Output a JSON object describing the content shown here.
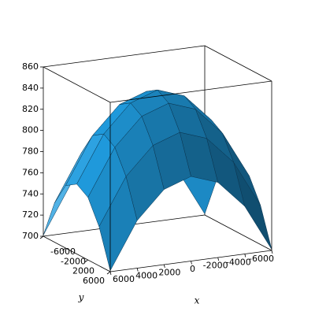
{
  "chart_data": {
    "type": "surface",
    "x": [
      -6000,
      -4000,
      -2000,
      0,
      2000,
      4000,
      6000
    ],
    "y": [
      -6000,
      -4000,
      -2000,
      0,
      2000,
      4000,
      6000
    ],
    "z": [
      [
        701,
        745,
        771,
        780,
        771,
        745,
        701
      ],
      [
        737,
        781,
        807,
        816,
        807,
        781,
        737
      ],
      [
        759,
        803,
        829,
        838,
        829,
        803,
        759
      ],
      [
        766,
        810,
        836,
        845,
        836,
        810,
        766
      ],
      [
        759,
        803,
        829,
        838,
        829,
        803,
        759
      ],
      [
        737,
        781,
        807,
        816,
        807,
        781,
        737
      ],
      [
        701,
        745,
        771,
        780,
        771,
        745,
        701
      ]
    ],
    "color": "#1e90d0",
    "xlabel": "x",
    "ylabel": "y",
    "xlim": [
      -6000,
      6000
    ],
    "ylim": [
      -6000,
      6000
    ],
    "zlim": [
      700,
      860
    ],
    "xticks": [
      6000,
      4000,
      2000,
      0,
      -2000,
      -4000,
      -6000
    ],
    "yticks": [
      -6000,
      -2000,
      2000,
      6000
    ],
    "zticks": [
      700,
      720,
      740,
      760,
      780,
      800,
      820,
      840,
      860
    ]
  }
}
